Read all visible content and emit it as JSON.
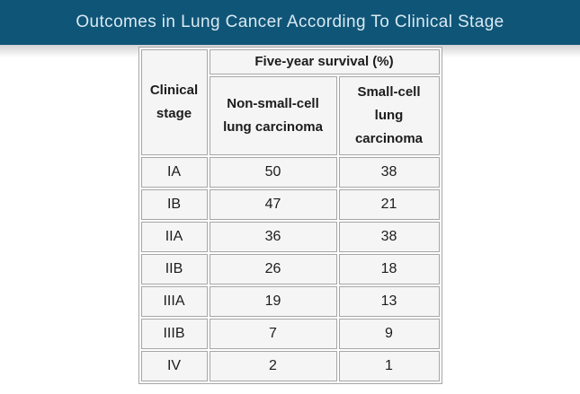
{
  "banner": {
    "title": "Outcomes in Lung Cancer According To Clinical Stage"
  },
  "table": {
    "corner_header": "Clinical stage",
    "group_header": "Five-year survival (%)",
    "col1_header": "Non-small-cell lung carcinoma",
    "col2_header": "Small-cell lung carcinoma",
    "rows": [
      {
        "stage": "IA",
        "nsclc": "50",
        "sclc": "38"
      },
      {
        "stage": "IB",
        "nsclc": "47",
        "sclc": "21"
      },
      {
        "stage": "IIA",
        "nsclc": "36",
        "sclc": "38"
      },
      {
        "stage": "IIB",
        "nsclc": "26",
        "sclc": "18"
      },
      {
        "stage": "IIIA",
        "nsclc": "19",
        "sclc": "13"
      },
      {
        "stage": "IIIB",
        "nsclc": "7",
        "sclc": "9"
      },
      {
        "stage": "IV",
        "nsclc": "2",
        "sclc": "1"
      }
    ]
  },
  "colors": {
    "banner_background": "#0f5578",
    "banner_text": "#d9e9f1",
    "cell_background": "#f5f5f5",
    "cell_border": "#a6a6a6",
    "body_text": "#1c1c1c"
  },
  "chart_data": {
    "type": "table",
    "title": "Outcomes in Lung Cancer According To Clinical Stage",
    "group_header": "Five-year survival (%)",
    "columns": [
      "Clinical stage",
      "Non-small-cell lung carcinoma",
      "Small-cell lung carcinoma"
    ],
    "rows": [
      [
        "IA",
        50,
        38
      ],
      [
        "IB",
        47,
        21
      ],
      [
        "IIA",
        36,
        38
      ],
      [
        "IIB",
        26,
        18
      ],
      [
        "IIIA",
        19,
        13
      ],
      [
        "IIIB",
        7,
        9
      ],
      [
        "IV",
        2,
        1
      ]
    ]
  }
}
